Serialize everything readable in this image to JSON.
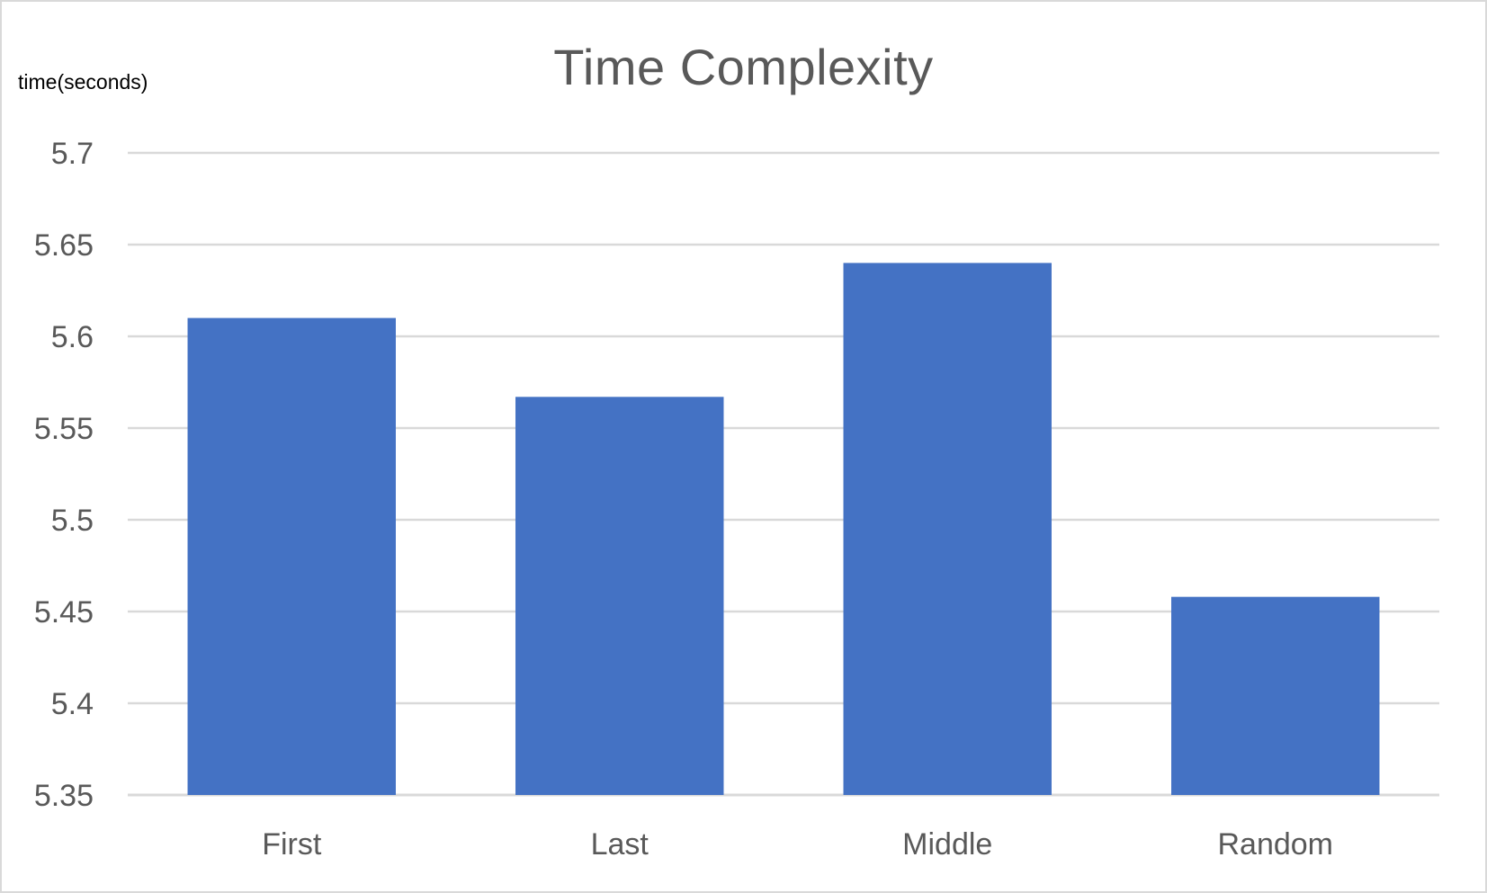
{
  "chart_data": {
    "type": "bar",
    "title": "Time Complexity",
    "ylabel": "time(seconds)",
    "xlabel": "",
    "categories": [
      "First",
      "Last",
      "Middle",
      "Random"
    ],
    "values": [
      5.61,
      5.567,
      5.64,
      5.458
    ],
    "ylim": [
      5.35,
      5.7
    ],
    "yticks": [
      "5.35",
      "5.4",
      "5.45",
      "5.5",
      "5.55",
      "5.6",
      "5.65",
      "5.7"
    ],
    "grid": true,
    "legend": "none",
    "bar_color": "#4472C4",
    "grid_color": "#d9d9d9"
  }
}
